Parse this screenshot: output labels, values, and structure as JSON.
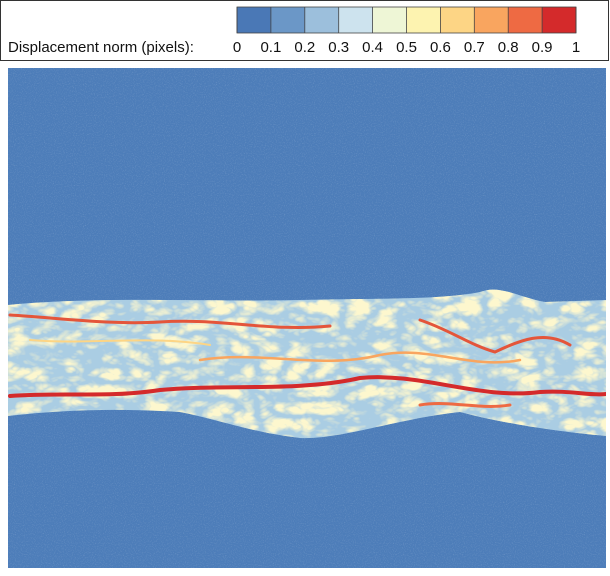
{
  "chart_data": {
    "type": "heatmap",
    "colorbar_label": "Displacement norm (pixels):",
    "clim": [
      0,
      1
    ],
    "cticks": [
      0,
      0.1,
      0.2,
      0.3,
      0.4,
      0.5,
      0.6,
      0.7,
      0.8,
      0.9,
      1
    ],
    "colors": [
      "#4a78b6",
      "#6b97c7",
      "#9cbfdc",
      "#cde3ee",
      "#eef6d6",
      "#fdf3b0",
      "#fdd585",
      "#f9a55f",
      "#ee6a43",
      "#d42a2b"
    ]
  }
}
